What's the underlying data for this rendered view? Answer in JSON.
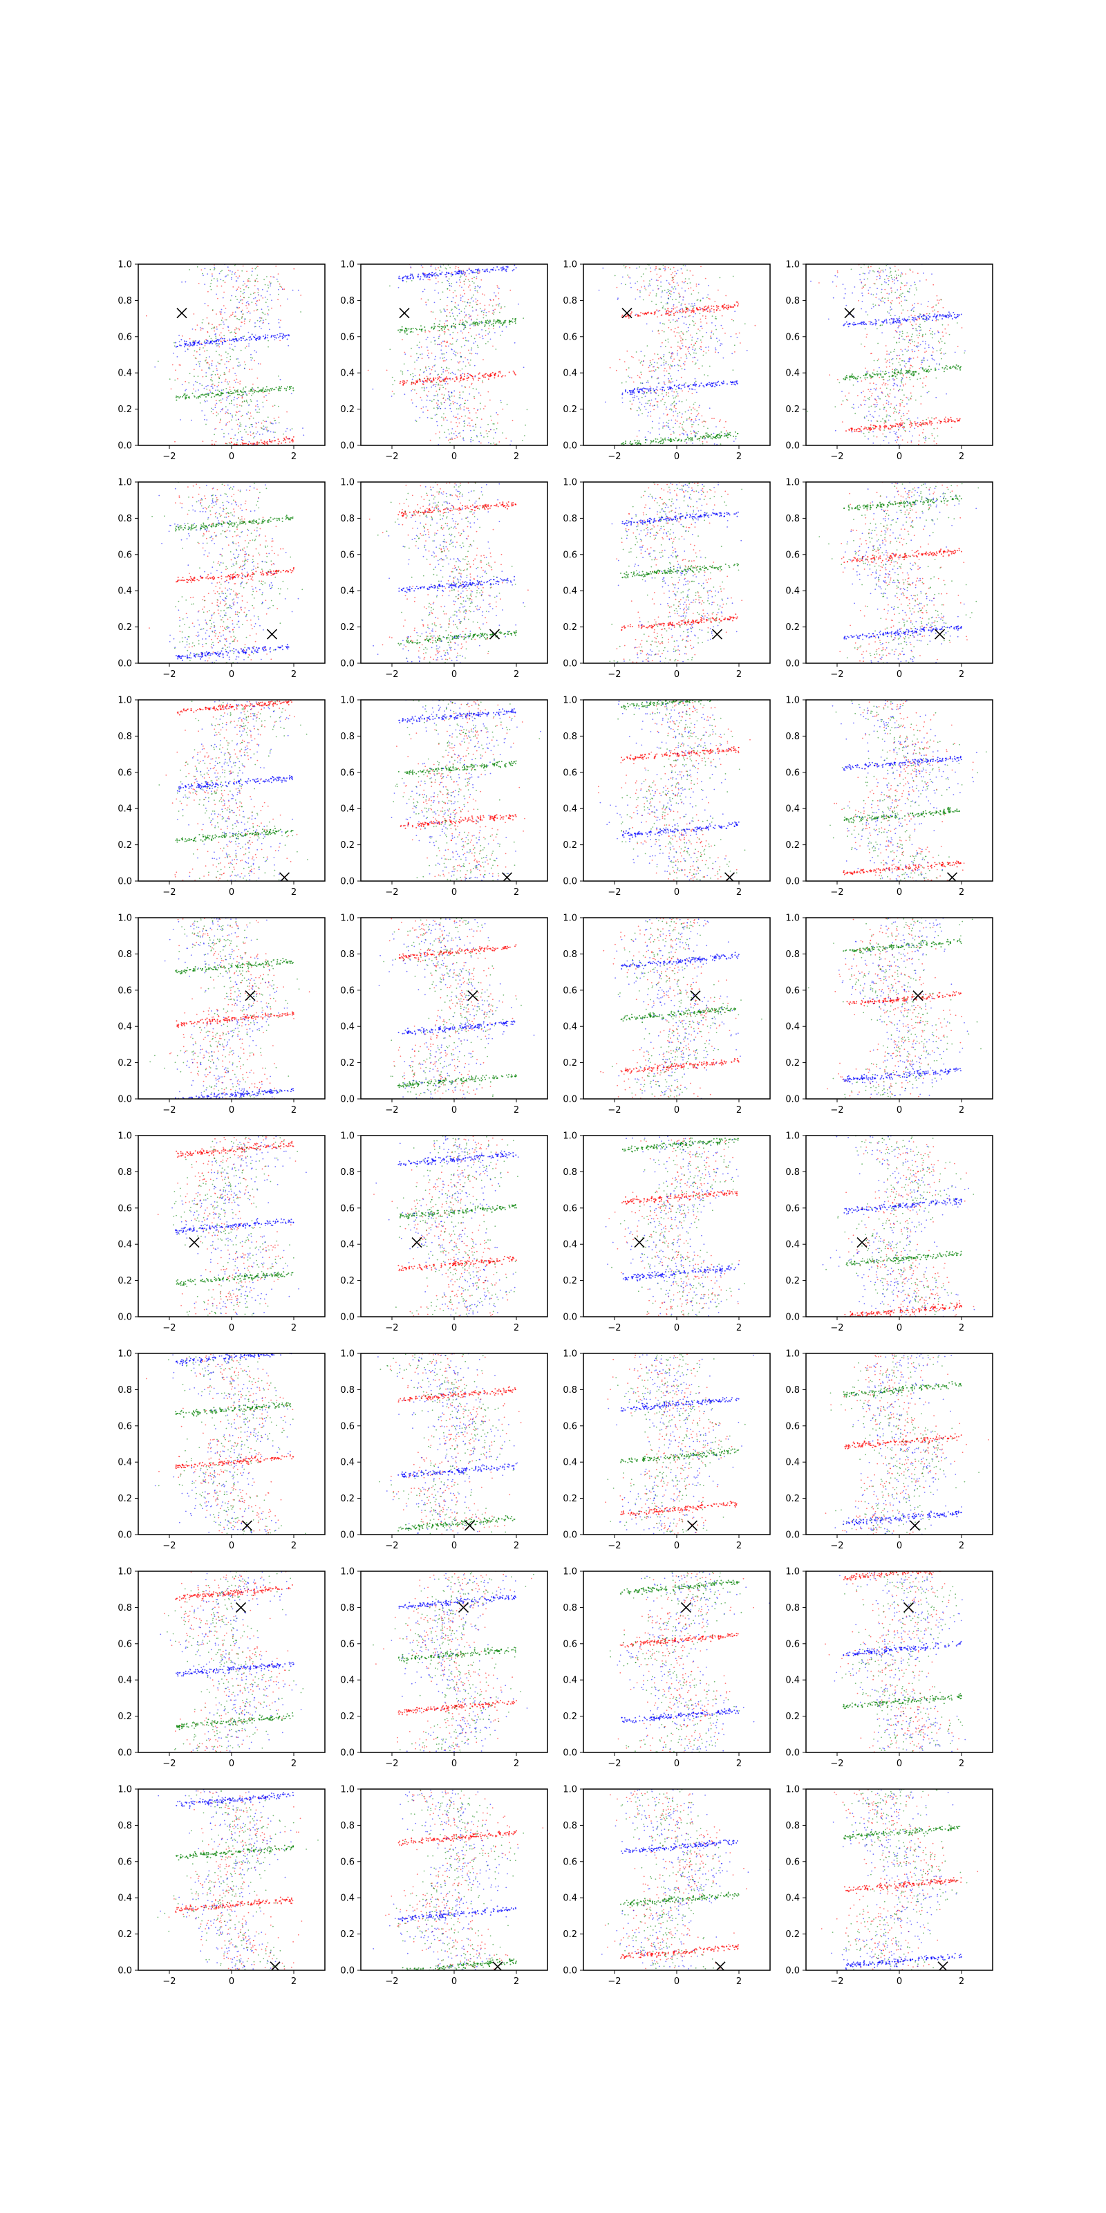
{
  "figure": {
    "rows": 8,
    "cols": 4,
    "colors": {
      "red": "#ff0000",
      "green": "#008000",
      "blue": "#0000ff",
      "marker": "#000000",
      "background": "#ffffff"
    },
    "marker_symbol": "x"
  },
  "chart_data": {
    "type": "scatter",
    "title": "",
    "xlabel": "",
    "ylabel": "",
    "grid": false,
    "legend": "none",
    "series_colors": [
      "#ff0000",
      "#008000",
      "#0000ff"
    ],
    "col_xlim": [
      [
        -3,
        3
      ],
      [
        -3,
        3
      ],
      [
        -3,
        3
      ],
      [
        -3,
        3
      ]
    ],
    "xticks": [
      -2,
      0,
      2
    ],
    "xtick_labels": [
      "−2",
      "0",
      "2"
    ],
    "ylim": [
      0,
      1
    ],
    "yticks": [
      0.0,
      0.2,
      0.4,
      0.6,
      0.8,
      1.0
    ],
    "ytick_labels": [
      "0.0",
      "0.2",
      "0.4",
      "0.6",
      "0.8",
      "1.0"
    ],
    "panels": [
      {
        "row": 0,
        "col": 0,
        "marker": [
          -1.6,
          0.73
        ]
      },
      {
        "row": 0,
        "col": 1,
        "marker": [
          -1.6,
          0.73
        ]
      },
      {
        "row": 0,
        "col": 2,
        "marker": [
          -1.6,
          0.73
        ]
      },
      {
        "row": 0,
        "col": 3,
        "marker": [
          -1.6,
          0.73
        ]
      },
      {
        "row": 1,
        "col": 0,
        "marker": [
          1.3,
          0.16
        ]
      },
      {
        "row": 1,
        "col": 1,
        "marker": [
          1.3,
          0.16
        ]
      },
      {
        "row": 1,
        "col": 2,
        "marker": [
          1.3,
          0.16
        ]
      },
      {
        "row": 1,
        "col": 3,
        "marker": [
          1.3,
          0.16
        ]
      },
      {
        "row": 2,
        "col": 0,
        "marker": [
          1.7,
          0.02
        ]
      },
      {
        "row": 2,
        "col": 1,
        "marker": [
          1.7,
          0.02
        ]
      },
      {
        "row": 2,
        "col": 2,
        "marker": [
          1.7,
          0.02
        ]
      },
      {
        "row": 2,
        "col": 3,
        "marker": [
          1.7,
          0.02
        ]
      },
      {
        "row": 3,
        "col": 0,
        "marker": [
          0.6,
          0.57
        ]
      },
      {
        "row": 3,
        "col": 1,
        "marker": [
          0.6,
          0.57
        ]
      },
      {
        "row": 3,
        "col": 2,
        "marker": [
          0.6,
          0.57
        ]
      },
      {
        "row": 3,
        "col": 3,
        "marker": [
          0.6,
          0.57
        ]
      },
      {
        "row": 4,
        "col": 0,
        "marker": [
          -1.2,
          0.41
        ]
      },
      {
        "row": 4,
        "col": 1,
        "marker": [
          -1.2,
          0.41
        ]
      },
      {
        "row": 4,
        "col": 2,
        "marker": [
          -1.2,
          0.41
        ]
      },
      {
        "row": 4,
        "col": 3,
        "marker": [
          -1.2,
          0.41
        ]
      },
      {
        "row": 5,
        "col": 0,
        "marker": [
          0.5,
          0.05
        ]
      },
      {
        "row": 5,
        "col": 1,
        "marker": [
          0.5,
          0.05
        ]
      },
      {
        "row": 5,
        "col": 2,
        "marker": [
          0.5,
          0.05
        ]
      },
      {
        "row": 5,
        "col": 3,
        "marker": [
          0.5,
          0.05
        ]
      },
      {
        "row": 6,
        "col": 0,
        "marker": [
          0.3,
          0.8
        ]
      },
      {
        "row": 6,
        "col": 1,
        "marker": [
          0.3,
          0.8
        ]
      },
      {
        "row": 6,
        "col": 2,
        "marker": [
          0.3,
          0.8
        ]
      },
      {
        "row": 6,
        "col": 3,
        "marker": [
          0.3,
          0.8
        ]
      },
      {
        "row": 7,
        "col": 0,
        "marker": [
          1.4,
          0.02
        ]
      },
      {
        "row": 7,
        "col": 1,
        "marker": [
          1.4,
          0.02
        ]
      },
      {
        "row": 7,
        "col": 2,
        "marker": [
          1.4,
          0.02
        ]
      },
      {
        "row": 7,
        "col": 3,
        "marker": [
          1.4,
          0.02
        ]
      }
    ]
  }
}
